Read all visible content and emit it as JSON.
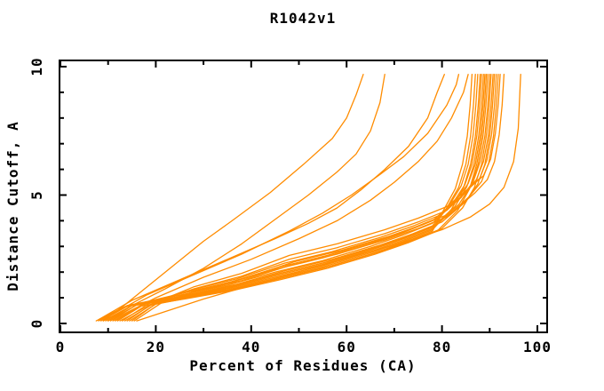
{
  "page": {
    "background_color": "#ffffff",
    "text_color": "#000000"
  },
  "chart_data": {
    "type": "line",
    "title": "R1042v1",
    "xlabel": "Percent of Residues (CA)",
    "ylabel": "Distance Cutoff, A",
    "xlim": [
      0,
      102
    ],
    "ylim": [
      0,
      10.2
    ],
    "grid": false,
    "legend_position": "none",
    "line_color": "#FF8C00",
    "axis_color": "#000000",
    "x_major_ticks": [
      0,
      20,
      40,
      60,
      80,
      100
    ],
    "x_minor_ticks": [
      10,
      30,
      50,
      70,
      90
    ],
    "x_tick_labels": [
      "0",
      "20",
      "40",
      "60",
      "80",
      "100"
    ],
    "y_major_ticks": [
      0,
      5,
      10
    ],
    "y_minor_ticks": [
      1,
      2,
      3,
      4,
      6,
      7,
      8,
      9
    ],
    "y_tick_labels": [
      "0",
      "5",
      "10"
    ],
    "curves": [
      [
        [
          9,
          0.1
        ],
        [
          13,
          0.65
        ],
        [
          18,
          1.4
        ],
        [
          24,
          2.3
        ],
        [
          30,
          3.2
        ],
        [
          36,
          4.0
        ],
        [
          44,
          5.1
        ],
        [
          51,
          6.2
        ],
        [
          57,
          7.2
        ],
        [
          60,
          8.0
        ],
        [
          62,
          8.9
        ],
        [
          63.5,
          9.7
        ]
      ],
      [
        [
          10,
          0.1
        ],
        [
          15,
          0.7
        ],
        [
          22,
          1.35
        ],
        [
          30,
          2.15
        ],
        [
          38,
          3.1
        ],
        [
          45,
          4.05
        ],
        [
          52,
          5.0
        ],
        [
          58,
          5.9
        ],
        [
          62,
          6.6
        ],
        [
          65,
          7.5
        ],
        [
          67,
          8.6
        ],
        [
          68,
          9.7
        ]
      ],
      [
        [
          8,
          0.15
        ],
        [
          15,
          0.9
        ],
        [
          25,
          1.7
        ],
        [
          35,
          2.5
        ],
        [
          45,
          3.3
        ],
        [
          52,
          3.9
        ],
        [
          58,
          4.5
        ],
        [
          63,
          5.2
        ],
        [
          68,
          6.0
        ],
        [
          73,
          6.9
        ],
        [
          77,
          8.0
        ],
        [
          79,
          9.0
        ],
        [
          80.5,
          9.7
        ]
      ],
      [
        [
          9,
          0.15
        ],
        [
          18,
          1.1
        ],
        [
          28,
          1.9
        ],
        [
          38,
          2.7
        ],
        [
          48,
          3.6
        ],
        [
          55,
          4.3
        ],
        [
          61,
          5.0
        ],
        [
          67,
          5.8
        ],
        [
          72,
          6.5
        ],
        [
          77,
          7.4
        ],
        [
          81,
          8.5
        ],
        [
          83,
          9.3
        ],
        [
          83.5,
          9.7
        ]
      ],
      [
        [
          11,
          0.15
        ],
        [
          20,
          1.0
        ],
        [
          30,
          1.8
        ],
        [
          40,
          2.5
        ],
        [
          50,
          3.3
        ],
        [
          58,
          4.0
        ],
        [
          65,
          4.8
        ],
        [
          70,
          5.5
        ],
        [
          75,
          6.3
        ],
        [
          79,
          7.1
        ],
        [
          82,
          8.0
        ],
        [
          84.5,
          9.0
        ],
        [
          85.5,
          9.7
        ]
      ],
      [
        [
          7.5,
          0.1
        ],
        [
          13.5,
          0.65
        ],
        [
          25,
          0.95
        ],
        [
          35,
          1.3
        ],
        [
          45,
          1.7
        ],
        [
          55,
          2.15
        ],
        [
          65,
          2.7
        ],
        [
          72,
          3.15
        ],
        [
          78,
          3.6
        ],
        [
          80.3,
          4.4
        ],
        [
          82.8,
          5.25
        ],
        [
          84.3,
          6.2
        ],
        [
          85.3,
          7.3
        ],
        [
          85.9,
          8.5
        ],
        [
          86.3,
          9.7
        ]
      ],
      [
        [
          8,
          0.1
        ],
        [
          14,
          0.7
        ],
        [
          25,
          1.0
        ],
        [
          35,
          1.35
        ],
        [
          45,
          1.8
        ],
        [
          55,
          2.25
        ],
        [
          65,
          2.8
        ],
        [
          72,
          3.25
        ],
        [
          78,
          3.7
        ],
        [
          81,
          4.5
        ],
        [
          83.5,
          5.3
        ],
        [
          85,
          6.2
        ],
        [
          86,
          7.3
        ],
        [
          86.6,
          8.5
        ],
        [
          87,
          9.7
        ]
      ],
      [
        [
          8.5,
          0.1
        ],
        [
          14.5,
          0.72
        ],
        [
          25,
          1.05
        ],
        [
          35,
          1.42
        ],
        [
          45,
          1.9
        ],
        [
          55,
          2.35
        ],
        [
          65,
          2.9
        ],
        [
          72,
          3.35
        ],
        [
          78,
          3.8
        ],
        [
          81.5,
          4.6
        ],
        [
          84,
          5.35
        ],
        [
          85.5,
          6.2
        ],
        [
          86.5,
          7.3
        ],
        [
          87.1,
          8.5
        ],
        [
          87.5,
          9.7
        ]
      ],
      [
        [
          9,
          0.1
        ],
        [
          15,
          0.7
        ],
        [
          25,
          0.98
        ],
        [
          35,
          1.31
        ],
        [
          45,
          1.75
        ],
        [
          55,
          2.2
        ],
        [
          65,
          2.75
        ],
        [
          72,
          3.2
        ],
        [
          78,
          3.65
        ],
        [
          82,
          4.45
        ],
        [
          84.5,
          5.28
        ],
        [
          86,
          6.2
        ],
        [
          87,
          7.3
        ],
        [
          87.6,
          8.5
        ],
        [
          88,
          9.7
        ]
      ],
      [
        [
          9.5,
          0.1
        ],
        [
          15.5,
          0.75
        ],
        [
          25,
          1.1
        ],
        [
          35,
          1.49
        ],
        [
          45,
          2.0
        ],
        [
          55,
          2.45
        ],
        [
          65,
          3.0
        ],
        [
          72,
          3.45
        ],
        [
          78,
          3.9
        ],
        [
          82.3,
          4.7
        ],
        [
          84.8,
          5.4
        ],
        [
          86.3,
          6.2
        ],
        [
          87.3,
          7.3
        ],
        [
          87.9,
          8.5
        ],
        [
          88.3,
          9.7
        ]
      ],
      [
        [
          10,
          0.1
        ],
        [
          16,
          0.72
        ],
        [
          25,
          1.02
        ],
        [
          35,
          1.38
        ],
        [
          45,
          1.85
        ],
        [
          55,
          2.3
        ],
        [
          65,
          2.85
        ],
        [
          72,
          3.3
        ],
        [
          78,
          3.75
        ],
        [
          82.7,
          4.55
        ],
        [
          85.2,
          5.32
        ],
        [
          86.7,
          6.2
        ],
        [
          87.7,
          7.3
        ],
        [
          88.3,
          8.5
        ],
        [
          88.7,
          9.7
        ]
      ],
      [
        [
          10.5,
          0.1
        ],
        [
          16.5,
          0.78
        ],
        [
          25,
          1.15
        ],
        [
          35,
          1.56
        ],
        [
          45,
          2.1
        ],
        [
          55,
          2.55
        ],
        [
          65,
          3.1
        ],
        [
          72,
          3.55
        ],
        [
          78,
          4.0
        ],
        [
          83,
          4.8
        ],
        [
          85.5,
          5.45
        ],
        [
          87,
          6.2
        ],
        [
          88,
          7.3
        ],
        [
          88.6,
          8.5
        ],
        [
          89,
          9.7
        ]
      ],
      [
        [
          11,
          0.1
        ],
        [
          17,
          0.68
        ],
        [
          26,
          0.95
        ],
        [
          36,
          1.28
        ],
        [
          46,
          1.7
        ],
        [
          56,
          2.15
        ],
        [
          66,
          2.7
        ],
        [
          73,
          3.15
        ],
        [
          79,
          3.6
        ],
        [
          83.3,
          4.4
        ],
        [
          85.8,
          5.25
        ],
        [
          87.3,
          6.2
        ],
        [
          88.3,
          7.3
        ],
        [
          88.9,
          8.5
        ],
        [
          89.3,
          9.7
        ]
      ],
      [
        [
          11.5,
          0.1
        ],
        [
          17.5,
          0.74
        ],
        [
          26,
          1.08
        ],
        [
          36,
          1.46
        ],
        [
          46,
          1.95
        ],
        [
          56,
          2.4
        ],
        [
          66,
          2.95
        ],
        [
          73,
          3.4
        ],
        [
          79,
          3.85
        ],
        [
          83.6,
          4.65
        ],
        [
          86.1,
          5.38
        ],
        [
          87.6,
          6.2
        ],
        [
          88.6,
          7.3
        ],
        [
          89.2,
          8.5
        ],
        [
          89.6,
          9.7
        ]
      ],
      [
        [
          12,
          0.1
        ],
        [
          18,
          0.8
        ],
        [
          26,
          1.2
        ],
        [
          36,
          1.63
        ],
        [
          46,
          2.2
        ],
        [
          56,
          2.65
        ],
        [
          66,
          3.2
        ],
        [
          73,
          3.65
        ],
        [
          79,
          4.1
        ],
        [
          84,
          4.9
        ],
        [
          86.5,
          5.5
        ],
        [
          88,
          6.3
        ],
        [
          89,
          7.3
        ],
        [
          89.6,
          8.5
        ],
        [
          90,
          9.7
        ]
      ],
      [
        [
          12.5,
          0.1
        ],
        [
          18.5,
          0.7
        ],
        [
          27,
          1.0
        ],
        [
          37,
          1.35
        ],
        [
          47,
          1.8
        ],
        [
          57,
          2.25
        ],
        [
          67,
          2.8
        ],
        [
          74,
          3.25
        ],
        [
          80,
          3.7
        ],
        [
          84.3,
          4.5
        ],
        [
          86.8,
          5.3
        ],
        [
          88.3,
          6.2
        ],
        [
          89.3,
          7.3
        ],
        [
          89.9,
          8.5
        ],
        [
          90.3,
          9.7
        ]
      ],
      [
        [
          13,
          0.1
        ],
        [
          19,
          0.83
        ],
        [
          27,
          1.28
        ],
        [
          37,
          1.74
        ],
        [
          47,
          2.35
        ],
        [
          57,
          2.8
        ],
        [
          67,
          3.35
        ],
        [
          74,
          3.8
        ],
        [
          80,
          4.25
        ],
        [
          84.7,
          5.05
        ],
        [
          87.2,
          5.6
        ],
        [
          88.7,
          6.3
        ],
        [
          89.7,
          7.3
        ],
        [
          90.3,
          8.5
        ],
        [
          90.7,
          9.7
        ]
      ],
      [
        [
          13.5,
          0.1
        ],
        [
          19.5,
          0.76
        ],
        [
          27,
          1.13
        ],
        [
          37,
          1.53
        ],
        [
          47,
          2.05
        ],
        [
          57,
          2.5
        ],
        [
          67,
          3.05
        ],
        [
          74,
          3.5
        ],
        [
          80,
          3.95
        ],
        [
          85,
          4.75
        ],
        [
          87.5,
          5.43
        ],
        [
          89,
          6.2
        ],
        [
          90,
          7.3
        ],
        [
          90.6,
          8.5
        ],
        [
          91,
          9.7
        ]
      ],
      [
        [
          14,
          0.1
        ],
        [
          20,
          0.86
        ],
        [
          28,
          1.35
        ],
        [
          38,
          1.84
        ],
        [
          48,
          2.5
        ],
        [
          58,
          2.95
        ],
        [
          68,
          3.5
        ],
        [
          75,
          3.95
        ],
        [
          81,
          4.4
        ],
        [
          85.4,
          5.2
        ],
        [
          87.9,
          5.65
        ],
        [
          89.4,
          6.35
        ],
        [
          90.4,
          7.35
        ],
        [
          91,
          8.5
        ],
        [
          91.4,
          9.7
        ]
      ],
      [
        [
          14.5,
          0.1
        ],
        [
          20.5,
          0.81
        ],
        [
          28,
          1.23
        ],
        [
          38,
          1.67
        ],
        [
          48,
          2.25
        ],
        [
          58,
          2.7
        ],
        [
          68,
          3.25
        ],
        [
          75,
          3.7
        ],
        [
          81,
          4.15
        ],
        [
          85.8,
          4.95
        ],
        [
          88.3,
          5.53
        ],
        [
          89.8,
          6.25
        ],
        [
          90.8,
          7.3
        ],
        [
          91.4,
          8.5
        ],
        [
          91.8,
          9.7
        ]
      ],
      [
        [
          15,
          0.1
        ],
        [
          21,
          0.9
        ],
        [
          28,
          1.43
        ],
        [
          38,
          1.95
        ],
        [
          48,
          2.65
        ],
        [
          58,
          3.1
        ],
        [
          68,
          3.65
        ],
        [
          75,
          4.1
        ],
        [
          81,
          4.55
        ],
        [
          86.2,
          5.35
        ],
        [
          88.7,
          5.75
        ],
        [
          90.2,
          6.4
        ],
        [
          91.2,
          7.4
        ],
        [
          91.8,
          8.55
        ],
        [
          92.2,
          9.7
        ]
      ],
      [
        [
          15.5,
          0.1
        ],
        [
          21.5,
          0.84
        ],
        [
          29,
          1.3
        ],
        [
          39,
          1.78
        ],
        [
          49,
          2.4
        ],
        [
          59,
          2.85
        ],
        [
          69,
          3.4
        ],
        [
          76,
          3.85
        ],
        [
          82,
          4.3
        ],
        [
          87,
          5.1
        ],
        [
          89.5,
          5.6
        ],
        [
          91,
          6.3
        ],
        [
          92,
          7.35
        ],
        [
          92.6,
          8.5
        ],
        [
          93,
          9.7
        ]
      ],
      [
        [
          16,
          0.1
        ],
        [
          30,
          0.95
        ],
        [
          45,
          1.75
        ],
        [
          60,
          2.55
        ],
        [
          70,
          3.05
        ],
        [
          80,
          3.65
        ],
        [
          86,
          4.15
        ],
        [
          90,
          4.65
        ],
        [
          93,
          5.3
        ],
        [
          95,
          6.3
        ],
        [
          96,
          7.6
        ],
        [
          96.5,
          9.7
        ]
      ]
    ]
  }
}
